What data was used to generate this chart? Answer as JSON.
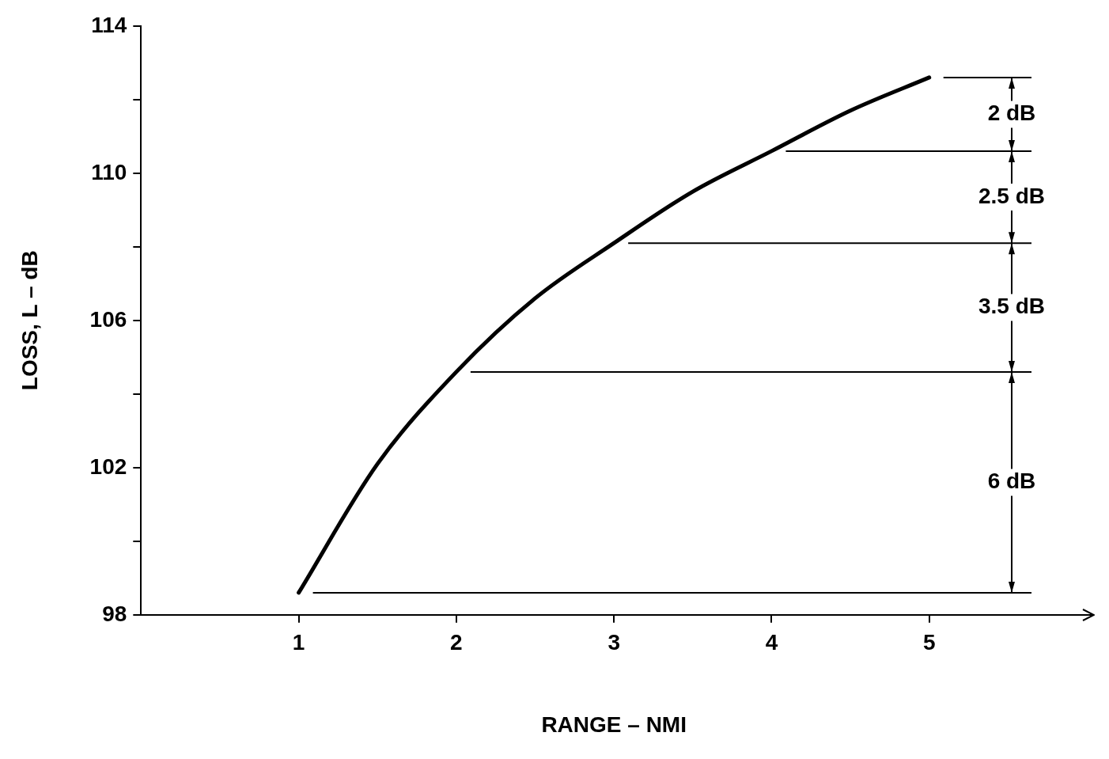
{
  "chart_data": {
    "type": "line",
    "xlabel": "RANGE – NMI",
    "ylabel": "LOSS, L – dB",
    "x": [
      1,
      1.5,
      2,
      2.5,
      3,
      3.5,
      4,
      4.5,
      5
    ],
    "series": [
      {
        "color": "#000000",
        "values": [
          98.6,
          102.1,
          104.6,
          106.6,
          108.1,
          109.5,
          110.6,
          111.7,
          112.6
        ]
      }
    ],
    "xlim": [
      0,
      6
    ],
    "xticks": [
      1,
      2,
      3,
      4,
      5
    ],
    "ylim": [
      98,
      114
    ],
    "yticks": [
      98,
      {
        "value": 100,
        "label": null
      },
      102,
      {
        "value": 104,
        "label": null
      },
      106,
      {
        "value": 108,
        "label": null
      },
      110,
      {
        "value": 112,
        "label": null
      },
      114
    ],
    "ref_lines": [
      {
        "axis": "y",
        "value": 98.6,
        "color": "#000000"
      },
      {
        "axis": "y",
        "value": 104.6,
        "color": "#000000"
      },
      {
        "axis": "y",
        "value": 108.1,
        "color": "#000000"
      },
      {
        "axis": "y",
        "value": 110.6,
        "color": "#000000"
      },
      {
        "axis": "y",
        "value": 112.6,
        "color": "#000000"
      }
    ],
    "annotations": [
      "6 dB",
      "3.5 dB",
      "2.5 dB",
      "2 dB"
    ],
    "grid": false,
    "legend": false,
    "marker": "none",
    "line_style": "solid"
  }
}
